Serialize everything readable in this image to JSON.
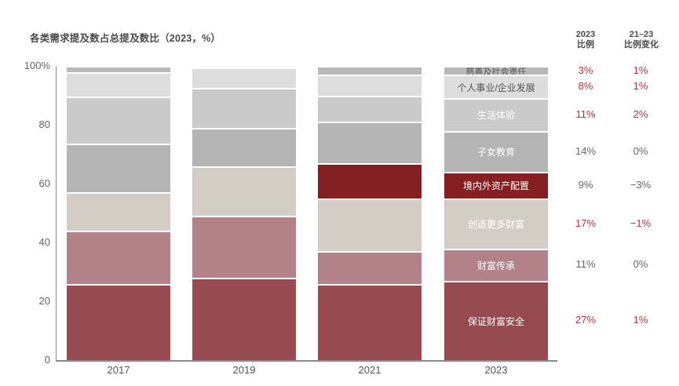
{
  "header": {
    "title": "各类需求提及数占总提及数比（2023，%）",
    "col1": {
      "line1": "2023",
      "line2": "比例"
    },
    "col2": {
      "line1": "21–23",
      "line2": "比例变化"
    }
  },
  "colors": {
    "保证财富安全": "#974b50",
    "财富传承": "#b28288",
    "创造更多财富": "#d4cdc6",
    "境内外资产配置": "#861f22",
    "子女教育": "#b3b4b3",
    "生活体验": "#c9cac9",
    "个人事业/企业发展": "#dcdddc",
    "慈善及社会责任": "#b8b8b8",
    "red_text": "#b5323d",
    "gray_text": "#666666"
  },
  "chart_data": {
    "type": "bar",
    "stacked": true,
    "title": "各类需求提及数占总提及数比（2023，%）",
    "xlabel": "",
    "ylabel": "",
    "ylim": [
      0,
      100
    ],
    "yticks": [
      "0",
      "20",
      "40",
      "60",
      "80",
      "100%"
    ],
    "categories": [
      "2017",
      "2019",
      "2021",
      "2023"
    ],
    "series": [
      {
        "name": "保证财富安全",
        "values": [
          26,
          28,
          26,
          27
        ]
      },
      {
        "name": "财富传承",
        "values": [
          18,
          21,
          11,
          11
        ]
      },
      {
        "name": "创造更多财富",
        "values": [
          13,
          17,
          18,
          17
        ]
      },
      {
        "name": "境内外资产配置",
        "values": [
          0,
          0,
          12,
          9
        ]
      },
      {
        "name": "子女教育",
        "values": [
          16.5,
          13,
          14,
          14
        ]
      },
      {
        "name": "生活体验",
        "values": [
          16,
          13.5,
          9,
          11
        ]
      },
      {
        "name": "个人事业/企业发展",
        "values": [
          8.5,
          7,
          7,
          8
        ]
      },
      {
        "name": "慈善及社会责任",
        "values": [
          2,
          0.5,
          3,
          3
        ]
      }
    ],
    "annotations": {
      "2023_share": [
        "27%",
        "11%",
        "17%",
        "9%",
        "14%",
        "11%",
        "8%",
        "3%"
      ],
      "change_21_23": [
        "1%",
        "0%",
        "−1%",
        "−3%",
        "0%",
        "2%",
        "1%",
        "1%"
      ],
      "highlight_red": [
        true,
        false,
        true,
        false,
        false,
        true,
        true,
        true
      ]
    },
    "grid": false,
    "legend": "inline labels on 2023 bar"
  }
}
